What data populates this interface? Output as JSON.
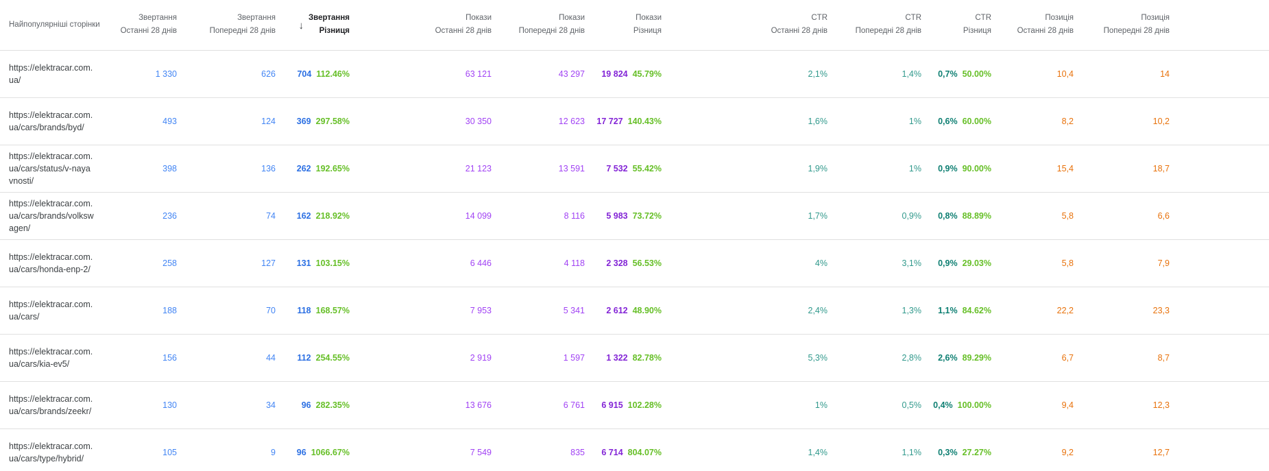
{
  "colors": {
    "clicks_blue": "#4285f4",
    "clicks_diff_blue": "#2b6fe3",
    "impressions_purple": "#a142f4",
    "impressions_diff_purple": "#8324d6",
    "ctr_teal": "#31998c",
    "ctr_diff_teal": "#0e7f72",
    "position_orange": "#e8710a",
    "positive_change_green": "#66bf27",
    "header_gray": "#5f6368",
    "url_text": "#3c4043",
    "row_border": "#e0e0e0"
  },
  "icons": {
    "sort_desc": "↓"
  },
  "table": {
    "columns": [
      {
        "line1": "Найпопулярніші сторінки",
        "line2": ""
      },
      {
        "line1": "Звертання",
        "line2": "Останні 28 днів"
      },
      {
        "line1": "Звертання",
        "line2": "Попередні 28 днів"
      },
      {
        "line1": "Звертання",
        "line2": "Різниця",
        "sorted": "desc"
      },
      {
        "line1": "Покази",
        "line2": "Останні 28 днів"
      },
      {
        "line1": "Покази",
        "line2": "Попередні 28 днів"
      },
      {
        "line1": "Покази",
        "line2": "Різниця"
      },
      {
        "line1": "CTR",
        "line2": "Останні 28 днів"
      },
      {
        "line1": "CTR",
        "line2": "Попередні 28 днів"
      },
      {
        "line1": "CTR",
        "line2": "Різниця"
      },
      {
        "line1": "Позиція",
        "line2": "Останні 28 днів"
      },
      {
        "line1": "Позиція",
        "line2": "Попередні 28 днів"
      }
    ],
    "rows": [
      {
        "page": "https://elektracar.com.ua/",
        "clicks_last": "1 330",
        "clicks_prev": "626",
        "clicks_diff": "704",
        "clicks_diff_pct": "112.46%",
        "impr_last": "63 121",
        "impr_prev": "43 297",
        "impr_diff": "19 824",
        "impr_diff_pct": "45.79%",
        "ctr_last": "2,1%",
        "ctr_prev": "1,4%",
        "ctr_diff": "0,7%",
        "ctr_diff_pct": "50.00%",
        "pos_last": "10,4",
        "pos_prev": "14"
      },
      {
        "page": "https://elektracar.com.ua/cars/brands/byd/",
        "clicks_last": "493",
        "clicks_prev": "124",
        "clicks_diff": "369",
        "clicks_diff_pct": "297.58%",
        "impr_last": "30 350",
        "impr_prev": "12 623",
        "impr_diff": "17 727",
        "impr_diff_pct": "140.43%",
        "ctr_last": "1,6%",
        "ctr_prev": "1%",
        "ctr_diff": "0,6%",
        "ctr_diff_pct": "60.00%",
        "pos_last": "8,2",
        "pos_prev": "10,2"
      },
      {
        "page": "https://elektracar.com.ua/cars/status/v-nayavnosti/",
        "clicks_last": "398",
        "clicks_prev": "136",
        "clicks_diff": "262",
        "clicks_diff_pct": "192.65%",
        "impr_last": "21 123",
        "impr_prev": "13 591",
        "impr_diff": "7 532",
        "impr_diff_pct": "55.42%",
        "ctr_last": "1,9%",
        "ctr_prev": "1%",
        "ctr_diff": "0,9%",
        "ctr_diff_pct": "90.00%",
        "pos_last": "15,4",
        "pos_prev": "18,7"
      },
      {
        "page": "https://elektracar.com.ua/cars/brands/volkswagen/",
        "clicks_last": "236",
        "clicks_prev": "74",
        "clicks_diff": "162",
        "clicks_diff_pct": "218.92%",
        "impr_last": "14 099",
        "impr_prev": "8 116",
        "impr_diff": "5 983",
        "impr_diff_pct": "73.72%",
        "ctr_last": "1,7%",
        "ctr_prev": "0,9%",
        "ctr_diff": "0,8%",
        "ctr_diff_pct": "88.89%",
        "pos_last": "5,8",
        "pos_prev": "6,6"
      },
      {
        "page": "https://elektracar.com.ua/cars/honda-enp-2/",
        "clicks_last": "258",
        "clicks_prev": "127",
        "clicks_diff": "131",
        "clicks_diff_pct": "103.15%",
        "impr_last": "6 446",
        "impr_prev": "4 118",
        "impr_diff": "2 328",
        "impr_diff_pct": "56.53%",
        "ctr_last": "4%",
        "ctr_prev": "3,1%",
        "ctr_diff": "0,9%",
        "ctr_diff_pct": "29.03%",
        "pos_last": "5,8",
        "pos_prev": "7,9"
      },
      {
        "page": "https://elektracar.com.ua/cars/",
        "clicks_last": "188",
        "clicks_prev": "70",
        "clicks_diff": "118",
        "clicks_diff_pct": "168.57%",
        "impr_last": "7 953",
        "impr_prev": "5 341",
        "impr_diff": "2 612",
        "impr_diff_pct": "48.90%",
        "ctr_last": "2,4%",
        "ctr_prev": "1,3%",
        "ctr_diff": "1,1%",
        "ctr_diff_pct": "84.62%",
        "pos_last": "22,2",
        "pos_prev": "23,3"
      },
      {
        "page": "https://elektracar.com.ua/cars/kia-ev5/",
        "clicks_last": "156",
        "clicks_prev": "44",
        "clicks_diff": "112",
        "clicks_diff_pct": "254.55%",
        "impr_last": "2 919",
        "impr_prev": "1 597",
        "impr_diff": "1 322",
        "impr_diff_pct": "82.78%",
        "ctr_last": "5,3%",
        "ctr_prev": "2,8%",
        "ctr_diff": "2,6%",
        "ctr_diff_pct": "89.29%",
        "pos_last": "6,7",
        "pos_prev": "8,7"
      },
      {
        "page": "https://elektracar.com.ua/cars/brands/zeekr/",
        "clicks_last": "130",
        "clicks_prev": "34",
        "clicks_diff": "96",
        "clicks_diff_pct": "282.35%",
        "impr_last": "13 676",
        "impr_prev": "6 761",
        "impr_diff": "6 915",
        "impr_diff_pct": "102.28%",
        "ctr_last": "1%",
        "ctr_prev": "0,5%",
        "ctr_diff": "0,4%",
        "ctr_diff_pct": "100.00%",
        "pos_last": "9,4",
        "pos_prev": "12,3"
      },
      {
        "page": "https://elektracar.com.ua/cars/type/hybrid/",
        "clicks_last": "105",
        "clicks_prev": "9",
        "clicks_diff": "96",
        "clicks_diff_pct": "1066.67%",
        "impr_last": "7 549",
        "impr_prev": "835",
        "impr_diff": "6 714",
        "impr_diff_pct": "804.07%",
        "ctr_last": "1,4%",
        "ctr_prev": "1,1%",
        "ctr_diff": "0,3%",
        "ctr_diff_pct": "27.27%",
        "pos_last": "9,2",
        "pos_prev": "12,7"
      }
    ]
  }
}
